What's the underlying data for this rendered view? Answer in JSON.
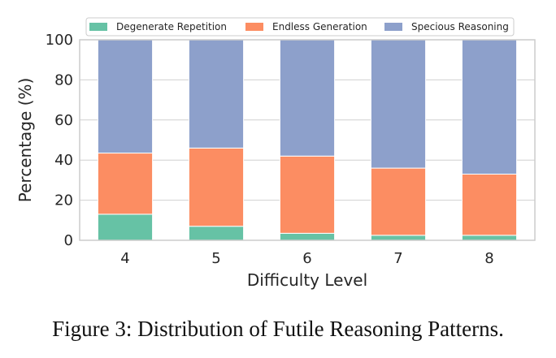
{
  "caption": "Figure 3: Distribution of Futile Reasoning Patterns.",
  "chart_data": {
    "type": "bar",
    "stacked": true,
    "categories": [
      "4",
      "5",
      "6",
      "7",
      "8"
    ],
    "series": [
      {
        "name": "Degenerate Repetition",
        "color": "#66c2a5",
        "values": [
          13,
          7,
          3.5,
          2.5,
          2.5
        ]
      },
      {
        "name": "Endless Generation",
        "color": "#fc8d62",
        "values": [
          30.5,
          39,
          38.5,
          33.5,
          30.5
        ]
      },
      {
        "name": "Specious Reasoning",
        "color": "#8da0cb",
        "values": [
          56.5,
          54,
          58,
          64,
          67
        ]
      }
    ],
    "title": "",
    "xlabel": "Difficulty Level",
    "ylabel": "Percentage (%)",
    "ylim": [
      0,
      100
    ],
    "yticks": [
      "0",
      "20",
      "40",
      "60",
      "80",
      "100"
    ],
    "grid": true,
    "legend_position": "top"
  }
}
